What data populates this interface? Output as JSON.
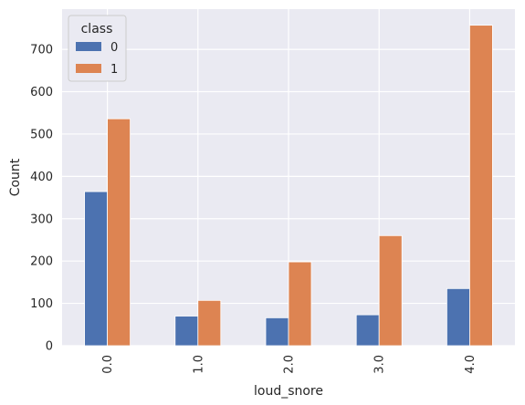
{
  "chart_data": {
    "type": "bar",
    "categories": [
      "0.0",
      "1.0",
      "2.0",
      "3.0",
      "4.0"
    ],
    "series": [
      {
        "name": "0",
        "values": [
          364,
          70,
          66,
          73,
          135
        ],
        "color": "#4c72b0"
      },
      {
        "name": "1",
        "values": [
          536,
          107,
          198,
          260,
          757
        ],
        "color": "#dd8452"
      }
    ],
    "xlabel": "loud_snore",
    "ylabel": "Count",
    "ylim": [
      0,
      795
    ],
    "yticks": [
      0,
      100,
      200,
      300,
      400,
      500,
      600,
      700
    ],
    "legend": {
      "title": "class",
      "placement": "top-left"
    },
    "grid": true,
    "background": "#eaeaf2"
  }
}
